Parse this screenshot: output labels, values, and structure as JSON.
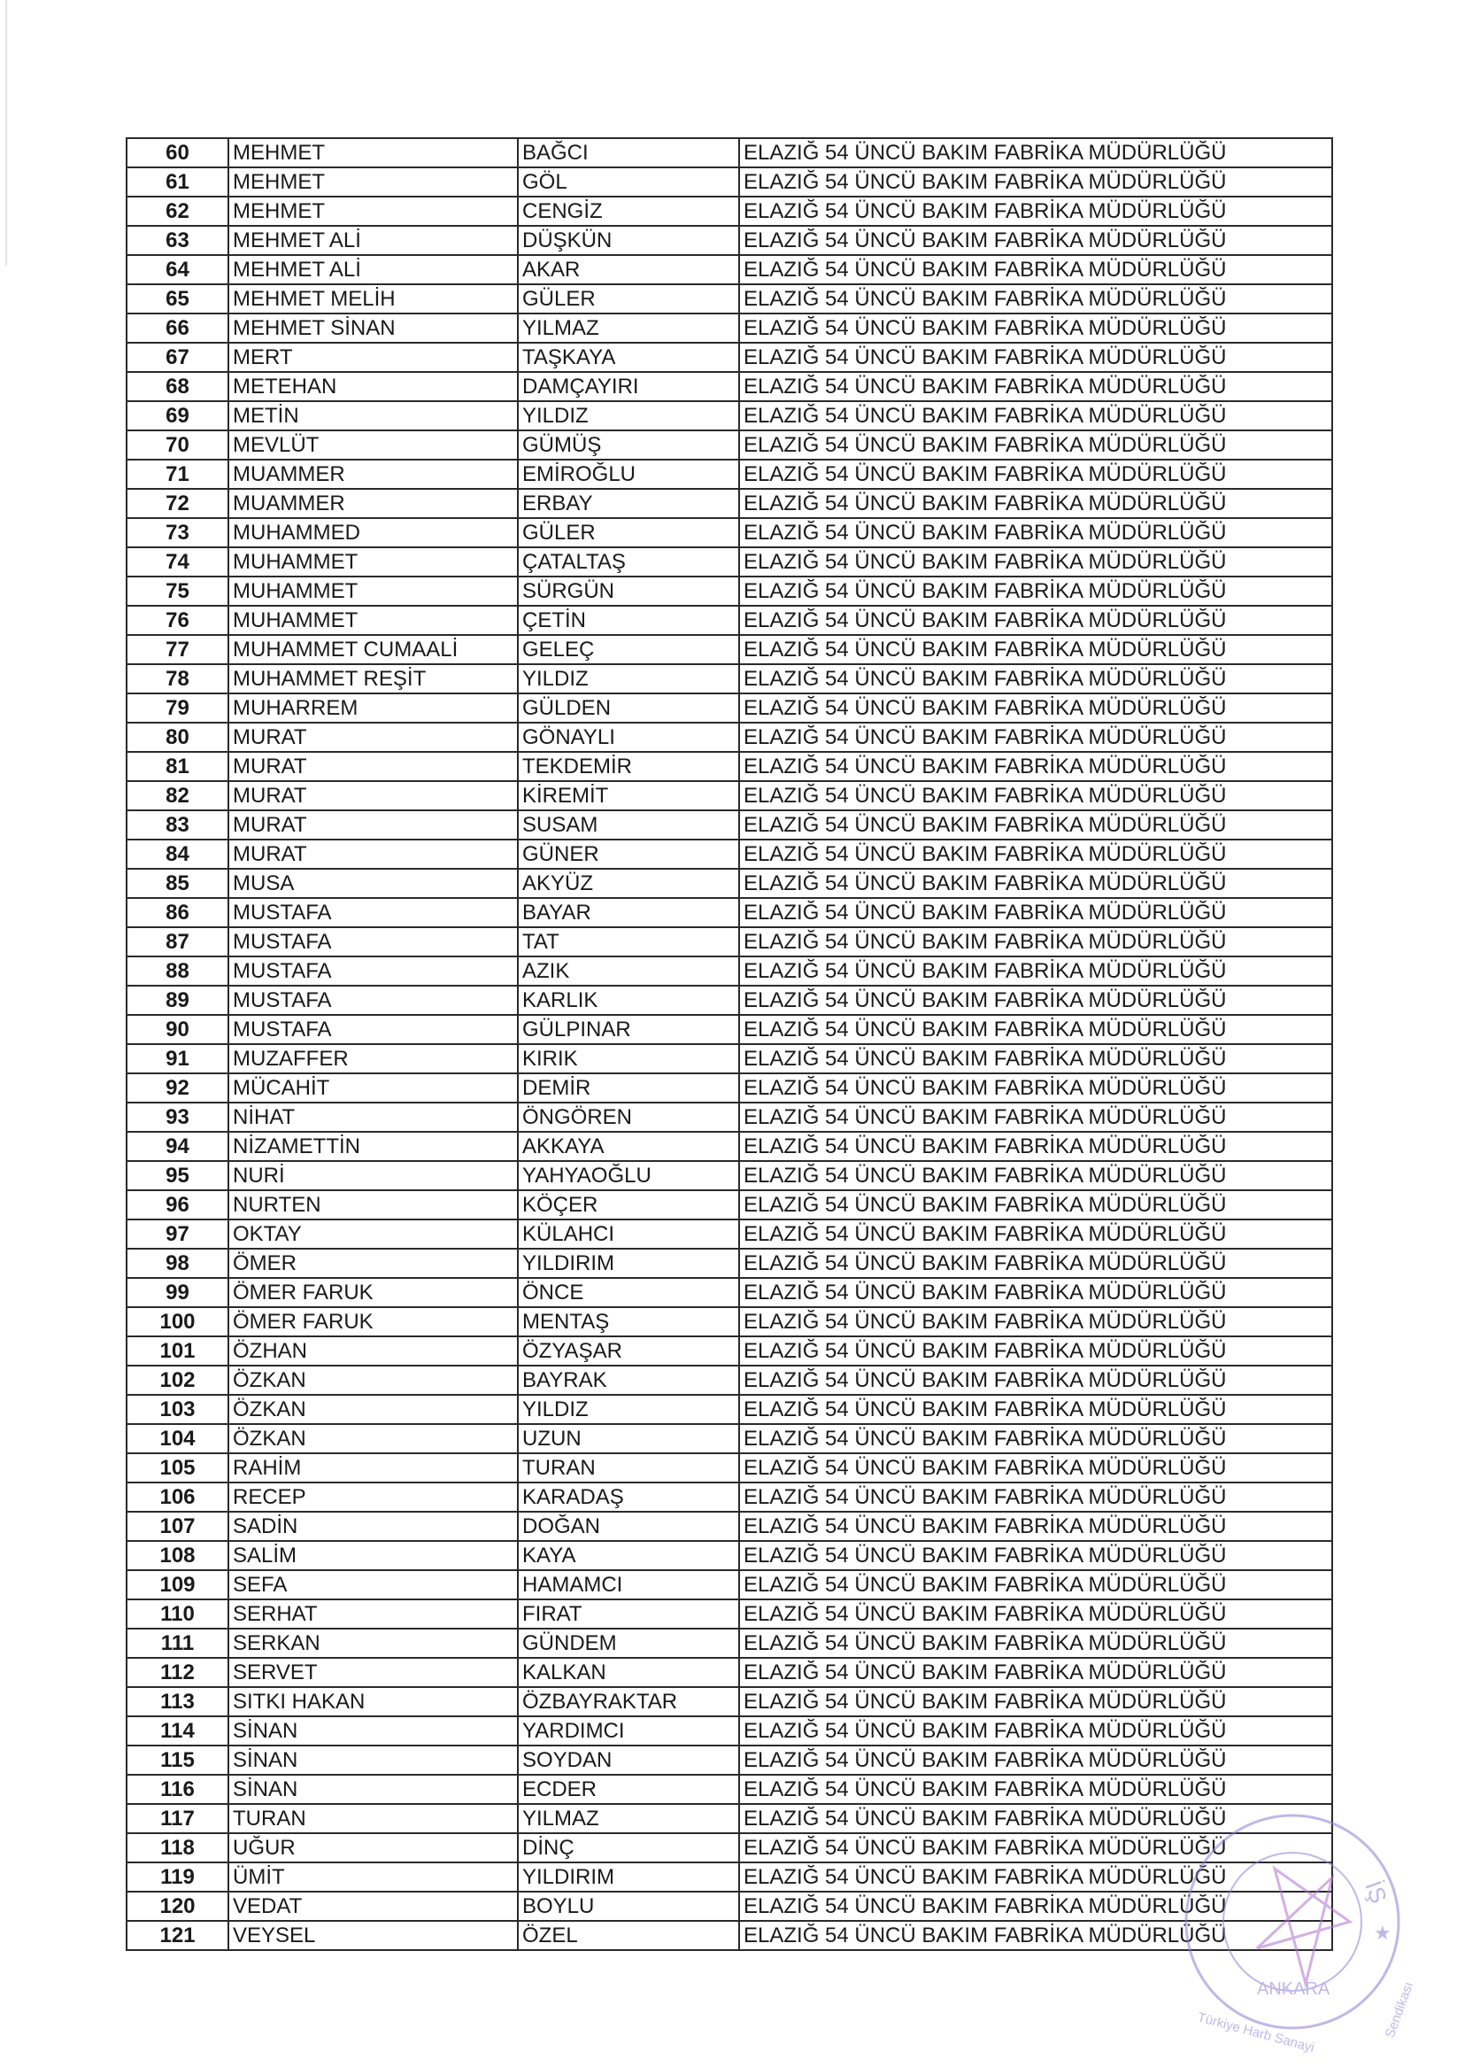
{
  "document": {
    "rows": [
      {
        "no": "60",
        "first": "MEHMET",
        "last": "BAĞCI",
        "unit": "ELAZIĞ 54 ÜNCÜ BAKIM FABRİKA MÜDÜRLÜĞÜ"
      },
      {
        "no": "61",
        "first": "MEHMET",
        "last": "GÖL",
        "unit": "ELAZIĞ 54 ÜNCÜ BAKIM FABRİKA MÜDÜRLÜĞÜ"
      },
      {
        "no": "62",
        "first": "MEHMET",
        "last": "CENGİZ",
        "unit": "ELAZIĞ 54 ÜNCÜ BAKIM FABRİKA MÜDÜRLÜĞÜ"
      },
      {
        "no": "63",
        "first": "MEHMET ALİ",
        "last": "DÜŞKÜN",
        "unit": "ELAZIĞ 54 ÜNCÜ BAKIM FABRİKA MÜDÜRLÜĞÜ"
      },
      {
        "no": "64",
        "first": "MEHMET ALİ",
        "last": "AKAR",
        "unit": "ELAZIĞ 54 ÜNCÜ BAKIM FABRİKA MÜDÜRLÜĞÜ"
      },
      {
        "no": "65",
        "first": "MEHMET MELİH",
        "last": "GÜLER",
        "unit": "ELAZIĞ 54 ÜNCÜ BAKIM FABRİKA MÜDÜRLÜĞÜ"
      },
      {
        "no": "66",
        "first": "MEHMET SİNAN",
        "last": "YILMAZ",
        "unit": "ELAZIĞ 54 ÜNCÜ BAKIM FABRİKA MÜDÜRLÜĞÜ"
      },
      {
        "no": "67",
        "first": "MERT",
        "last": "TAŞKAYA",
        "unit": "ELAZIĞ 54 ÜNCÜ BAKIM FABRİKA MÜDÜRLÜĞÜ"
      },
      {
        "no": "68",
        "first": "METEHAN",
        "last": "DAMÇAYIRI",
        "unit": "ELAZIĞ 54 ÜNCÜ BAKIM FABRİKA MÜDÜRLÜĞÜ"
      },
      {
        "no": "69",
        "first": "METİN",
        "last": "YILDIZ",
        "unit": "ELAZIĞ 54 ÜNCÜ BAKIM FABRİKA MÜDÜRLÜĞÜ"
      },
      {
        "no": "70",
        "first": "MEVLÜT",
        "last": "GÜMÜŞ",
        "unit": "ELAZIĞ 54 ÜNCÜ BAKIM FABRİKA MÜDÜRLÜĞÜ"
      },
      {
        "no": "71",
        "first": "MUAMMER",
        "last": "EMİROĞLU",
        "unit": "ELAZIĞ 54 ÜNCÜ BAKIM FABRİKA MÜDÜRLÜĞÜ"
      },
      {
        "no": "72",
        "first": "MUAMMER",
        "last": "ERBAY",
        "unit": "ELAZIĞ 54 ÜNCÜ BAKIM FABRİKA MÜDÜRLÜĞÜ"
      },
      {
        "no": "73",
        "first": "MUHAMMED",
        "last": "GÜLER",
        "unit": "ELAZIĞ 54 ÜNCÜ BAKIM FABRİKA MÜDÜRLÜĞÜ"
      },
      {
        "no": "74",
        "first": "MUHAMMET",
        "last": "ÇATALTAŞ",
        "unit": "ELAZIĞ 54 ÜNCÜ BAKIM FABRİKA MÜDÜRLÜĞÜ"
      },
      {
        "no": "75",
        "first": "MUHAMMET",
        "last": "SÜRGÜN",
        "unit": "ELAZIĞ 54 ÜNCÜ BAKIM FABRİKA MÜDÜRLÜĞÜ"
      },
      {
        "no": "76",
        "first": "MUHAMMET",
        "last": "ÇETİN",
        "unit": "ELAZIĞ 54 ÜNCÜ BAKIM FABRİKA MÜDÜRLÜĞÜ"
      },
      {
        "no": "77",
        "first": "MUHAMMET CUMAALİ",
        "last": "GELEÇ",
        "unit": "ELAZIĞ 54 ÜNCÜ BAKIM FABRİKA MÜDÜRLÜĞÜ"
      },
      {
        "no": "78",
        "first": "MUHAMMET REŞİT",
        "last": "YILDIZ",
        "unit": "ELAZIĞ 54 ÜNCÜ BAKIM FABRİKA MÜDÜRLÜĞÜ"
      },
      {
        "no": "79",
        "first": "MUHARREM",
        "last": "GÜLDEN",
        "unit": "ELAZIĞ 54 ÜNCÜ BAKIM FABRİKA MÜDÜRLÜĞÜ"
      },
      {
        "no": "80",
        "first": "MURAT",
        "last": "GÖNAYLI",
        "unit": "ELAZIĞ 54 ÜNCÜ BAKIM FABRİKA MÜDÜRLÜĞÜ"
      },
      {
        "no": "81",
        "first": "MURAT",
        "last": "TEKDEMİR",
        "unit": "ELAZIĞ 54 ÜNCÜ BAKIM FABRİKA MÜDÜRLÜĞÜ"
      },
      {
        "no": "82",
        "first": "MURAT",
        "last": "KİREMİT",
        "unit": "ELAZIĞ 54 ÜNCÜ BAKIM FABRİKA MÜDÜRLÜĞÜ"
      },
      {
        "no": "83",
        "first": "MURAT",
        "last": "SUSAM",
        "unit": "ELAZIĞ 54 ÜNCÜ BAKIM FABRİKA MÜDÜRLÜĞÜ"
      },
      {
        "no": "84",
        "first": "MURAT",
        "last": "GÜNER",
        "unit": "ELAZIĞ 54 ÜNCÜ BAKIM FABRİKA MÜDÜRLÜĞÜ"
      },
      {
        "no": "85",
        "first": "MUSA",
        "last": "AKYÜZ",
        "unit": "ELAZIĞ 54 ÜNCÜ BAKIM FABRİKA MÜDÜRLÜĞÜ"
      },
      {
        "no": "86",
        "first": "MUSTAFA",
        "last": "BAYAR",
        "unit": "ELAZIĞ 54 ÜNCÜ BAKIM FABRİKA MÜDÜRLÜĞÜ"
      },
      {
        "no": "87",
        "first": "MUSTAFA",
        "last": "TAT",
        "unit": "ELAZIĞ 54 ÜNCÜ BAKIM FABRİKA MÜDÜRLÜĞÜ"
      },
      {
        "no": "88",
        "first": "MUSTAFA",
        "last": "AZIK",
        "unit": "ELAZIĞ 54 ÜNCÜ BAKIM FABRİKA MÜDÜRLÜĞÜ"
      },
      {
        "no": "89",
        "first": "MUSTAFA",
        "last": "KARLIK",
        "unit": "ELAZIĞ 54 ÜNCÜ BAKIM FABRİKA MÜDÜRLÜĞÜ"
      },
      {
        "no": "90",
        "first": "MUSTAFA",
        "last": "GÜLPINAR",
        "unit": "ELAZIĞ 54 ÜNCÜ BAKIM FABRİKA MÜDÜRLÜĞÜ"
      },
      {
        "no": "91",
        "first": "MUZAFFER",
        "last": "KIRIK",
        "unit": "ELAZIĞ 54 ÜNCÜ BAKIM FABRİKA MÜDÜRLÜĞÜ"
      },
      {
        "no": "92",
        "first": "MÜCAHİT",
        "last": "DEMİR",
        "unit": "ELAZIĞ 54 ÜNCÜ BAKIM FABRİKA MÜDÜRLÜĞÜ"
      },
      {
        "no": "93",
        "first": "NİHAT",
        "last": "ÖNGÖREN",
        "unit": "ELAZIĞ 54 ÜNCÜ BAKIM FABRİKA MÜDÜRLÜĞÜ"
      },
      {
        "no": "94",
        "first": "NİZAMETTİN",
        "last": "AKKAYA",
        "unit": "ELAZIĞ 54 ÜNCÜ BAKIM FABRİKA MÜDÜRLÜĞÜ"
      },
      {
        "no": "95",
        "first": "NURİ",
        "last": "YAHYAOĞLU",
        "unit": "ELAZIĞ 54 ÜNCÜ BAKIM FABRİKA MÜDÜRLÜĞÜ"
      },
      {
        "no": "96",
        "first": "NURTEN",
        "last": "KÖÇER",
        "unit": "ELAZIĞ 54 ÜNCÜ BAKIM FABRİKA MÜDÜRLÜĞÜ"
      },
      {
        "no": "97",
        "first": "OKTAY",
        "last": "KÜLAHCI",
        "unit": "ELAZIĞ 54 ÜNCÜ BAKIM FABRİKA MÜDÜRLÜĞÜ"
      },
      {
        "no": "98",
        "first": "ÖMER",
        "last": "YILDIRIM",
        "unit": "ELAZIĞ 54 ÜNCÜ BAKIM FABRİKA MÜDÜRLÜĞÜ"
      },
      {
        "no": "99",
        "first": "ÖMER FARUK",
        "last": "ÖNCE",
        "unit": "ELAZIĞ 54 ÜNCÜ BAKIM FABRİKA MÜDÜRLÜĞÜ"
      },
      {
        "no": "100",
        "first": "ÖMER FARUK",
        "last": "MENTAŞ",
        "unit": "ELAZIĞ 54 ÜNCÜ BAKIM FABRİKA MÜDÜRLÜĞÜ"
      },
      {
        "no": "101",
        "first": "ÖZHAN",
        "last": "ÖZYAŞAR",
        "unit": "ELAZIĞ 54 ÜNCÜ BAKIM FABRİKA MÜDÜRLÜĞÜ"
      },
      {
        "no": "102",
        "first": "ÖZKAN",
        "last": "BAYRAK",
        "unit": "ELAZIĞ 54 ÜNCÜ BAKIM FABRİKA MÜDÜRLÜĞÜ"
      },
      {
        "no": "103",
        "first": "ÖZKAN",
        "last": "YILDIZ",
        "unit": "ELAZIĞ 54 ÜNCÜ BAKIM FABRİKA MÜDÜRLÜĞÜ"
      },
      {
        "no": "104",
        "first": "ÖZKAN",
        "last": "UZUN",
        "unit": "ELAZIĞ 54 ÜNCÜ BAKIM FABRİKA MÜDÜRLÜĞÜ"
      },
      {
        "no": "105",
        "first": "RAHİM",
        "last": "TURAN",
        "unit": "ELAZIĞ 54 ÜNCÜ BAKIM FABRİKA MÜDÜRLÜĞÜ"
      },
      {
        "no": "106",
        "first": "RECEP",
        "last": "KARADAŞ",
        "unit": "ELAZIĞ 54 ÜNCÜ BAKIM FABRİKA MÜDÜRLÜĞÜ"
      },
      {
        "no": "107",
        "first": "SADİN",
        "last": "DOĞAN",
        "unit": "ELAZIĞ 54 ÜNCÜ BAKIM FABRİKA MÜDÜRLÜĞÜ"
      },
      {
        "no": "108",
        "first": "SALİM",
        "last": "KAYA",
        "unit": "ELAZIĞ 54 ÜNCÜ BAKIM FABRİKA MÜDÜRLÜĞÜ"
      },
      {
        "no": "109",
        "first": "SEFA",
        "last": "HAMAMCI",
        "unit": "ELAZIĞ 54 ÜNCÜ BAKIM FABRİKA MÜDÜRLÜĞÜ"
      },
      {
        "no": "110",
        "first": "SERHAT",
        "last": "FIRAT",
        "unit": "ELAZIĞ 54 ÜNCÜ BAKIM FABRİKA MÜDÜRLÜĞÜ"
      },
      {
        "no": "111",
        "first": "SERKAN",
        "last": "GÜNDEM",
        "unit": "ELAZIĞ 54 ÜNCÜ BAKIM FABRİKA MÜDÜRLÜĞÜ"
      },
      {
        "no": "112",
        "first": "SERVET",
        "last": "KALKAN",
        "unit": "ELAZIĞ 54 ÜNCÜ BAKIM FABRİKA MÜDÜRLÜĞÜ"
      },
      {
        "no": "113",
        "first": "SITKI HAKAN",
        "last": "ÖZBAYRAKTAR",
        "unit": "ELAZIĞ 54 ÜNCÜ BAKIM FABRİKA MÜDÜRLÜĞÜ"
      },
      {
        "no": "114",
        "first": "SİNAN",
        "last": "YARDIMCI",
        "unit": "ELAZIĞ 54 ÜNCÜ BAKIM FABRİKA MÜDÜRLÜĞÜ"
      },
      {
        "no": "115",
        "first": "SİNAN",
        "last": "SOYDAN",
        "unit": "ELAZIĞ 54 ÜNCÜ BAKIM FABRİKA MÜDÜRLÜĞÜ"
      },
      {
        "no": "116",
        "first": "SİNAN",
        "last": "ECDER",
        "unit": "ELAZIĞ 54 ÜNCÜ BAKIM FABRİKA MÜDÜRLÜĞÜ"
      },
      {
        "no": "117",
        "first": "TURAN",
        "last": "YILMAZ",
        "unit": "ELAZIĞ 54 ÜNCÜ BAKIM FABRİKA MÜDÜRLÜĞÜ"
      },
      {
        "no": "118",
        "first": "UĞUR",
        "last": "DİNÇ",
        "unit": "ELAZIĞ 54 ÜNCÜ BAKIM FABRİKA MÜDÜRLÜĞÜ"
      },
      {
        "no": "119",
        "first": "ÜMİT",
        "last": "YILDIRIM",
        "unit": "ELAZIĞ 54 ÜNCÜ BAKIM FABRİKA MÜDÜRLÜĞÜ"
      },
      {
        "no": "120",
        "first": "VEDAT",
        "last": "BOYLU",
        "unit": "ELAZIĞ 54 ÜNCÜ BAKIM FABRİKA MÜDÜRLÜĞÜ"
      },
      {
        "no": "121",
        "first": "VEYSEL",
        "last": "ÖZEL",
        "unit": "ELAZIĞ 54 ÜNCÜ BAKIM FABRİKA MÜDÜRLÜĞÜ"
      }
    ]
  },
  "stamp": {
    "top_text": "HARB-İŞ",
    "center_text": "ANKARA",
    "ring_text": "Türkiye Harb Sanayi ve Savunma Sanayii İşçileri Sendikası",
    "color": "#8a7fd6",
    "signature_color": "#b070d0"
  }
}
